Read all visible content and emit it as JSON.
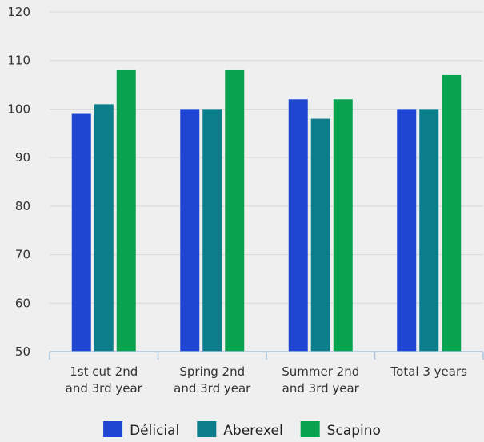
{
  "chart_data": {
    "type": "bar",
    "title": "",
    "xlabel": "",
    "ylabel": "",
    "categories": [
      [
        "1st cut 2nd",
        "and 3rd year"
      ],
      [
        "Spring 2nd",
        "and 3rd year"
      ],
      [
        "Summer 2nd",
        "and 3rd year"
      ],
      [
        "Total 3 years"
      ]
    ],
    "series": [
      {
        "name": "Délicial",
        "color": "#1e46d2",
        "values": [
          99,
          100,
          102,
          100
        ]
      },
      {
        "name": "Aberexel",
        "color": "#0c7e8b",
        "values": [
          101,
          100,
          98,
          100
        ]
      },
      {
        "name": "Scapino",
        "color": "#08a34e",
        "values": [
          108,
          108,
          102,
          107
        ]
      }
    ],
    "ylim": [
      50,
      120
    ],
    "yticks": [
      50,
      60,
      70,
      80,
      90,
      100,
      110,
      120
    ],
    "grid": true,
    "legend_position": "bottom-center"
  }
}
